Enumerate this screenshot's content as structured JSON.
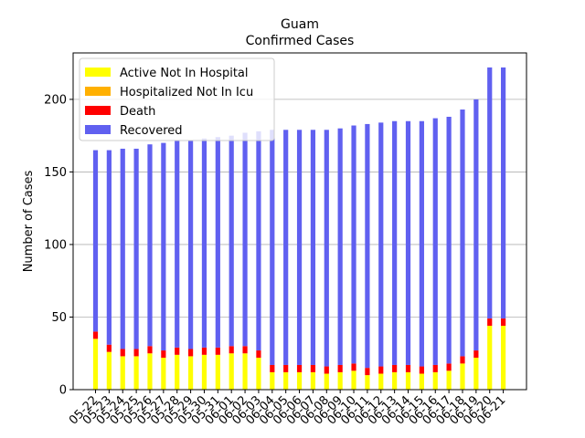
{
  "chart_data": {
    "type": "bar",
    "stacked": true,
    "title": "Guam",
    "subtitle": "Confirmed Cases",
    "xlabel": "",
    "ylabel": "Number of Cases",
    "ylim": [
      0,
      232
    ],
    "yticks": [
      0,
      50,
      100,
      150,
      200
    ],
    "grid": "horizontal",
    "legend_position": "top-left",
    "categories": [
      "05-22",
      "05-23",
      "05-24",
      "05-25",
      "05-26",
      "05-27",
      "05-28",
      "05-29",
      "05-30",
      "05-31",
      "06-01",
      "06-02",
      "06-03",
      "06-04",
      "06-05",
      "06-06",
      "06-07",
      "06-08",
      "06-09",
      "06-10",
      "06-11",
      "06-12",
      "06-13",
      "06-14",
      "06-15",
      "06-16",
      "06-17",
      "06-18",
      "06-19",
      "06-20",
      "06-21"
    ],
    "series": [
      {
        "name": "Active Not In Hospital",
        "color": "#ffff00",
        "values": [
          35,
          26,
          23,
          23,
          25,
          22,
          24,
          23,
          24,
          24,
          25,
          25,
          22,
          12,
          12,
          12,
          12,
          11,
          12,
          13,
          10,
          11,
          12,
          12,
          11,
          12,
          13,
          18,
          22,
          44,
          44
        ]
      },
      {
        "name": "Hospitalized Not In Icu",
        "color": "#ffb000",
        "values": [
          0,
          0,
          0,
          0,
          0,
          0,
          0,
          0,
          0,
          0,
          0,
          0,
          0,
          0,
          0,
          0,
          0,
          0,
          0,
          0,
          0,
          0,
          0,
          0,
          0,
          0,
          0,
          0,
          0,
          0,
          0
        ]
      },
      {
        "name": "Death",
        "color": "#ff0000",
        "values": [
          5,
          5,
          5,
          5,
          5,
          5,
          5,
          5,
          5,
          5,
          5,
          5,
          5,
          5,
          5,
          5,
          5,
          5,
          5,
          5,
          5,
          5,
          5,
          5,
          5,
          5,
          5,
          5,
          5,
          5,
          5
        ]
      },
      {
        "name": "Recovered",
        "color": "#6060f0",
        "values": [
          125,
          134,
          138,
          138,
          139,
          143,
          143,
          144,
          144,
          145,
          145,
          147,
          151,
          162,
          162,
          162,
          162,
          163,
          163,
          164,
          168,
          168,
          168,
          168,
          169,
          170,
          170,
          170,
          173,
          173,
          173
        ]
      }
    ]
  }
}
